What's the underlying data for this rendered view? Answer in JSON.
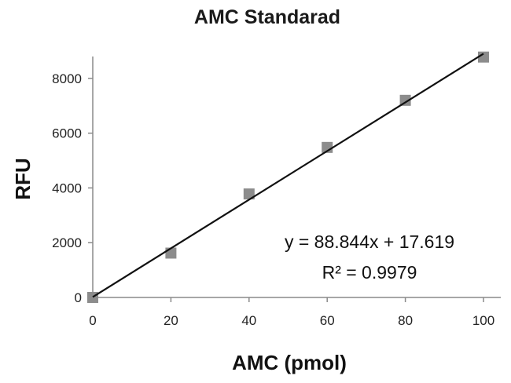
{
  "chart_data": {
    "type": "scatter",
    "title": "AMC Standarad",
    "xlabel": "AMC (pmol)",
    "ylabel": "RFU",
    "xlim": [
      0,
      100
    ],
    "ylim": [
      0,
      8800
    ],
    "x_ticks": [
      0,
      20,
      40,
      60,
      80,
      100
    ],
    "y_ticks": [
      0,
      2000,
      4000,
      6000,
      8000
    ],
    "grid": false,
    "legend": "none",
    "series": [
      {
        "x": [
          0,
          20,
          40,
          60,
          80,
          100
        ],
        "y": [
          0,
          1620,
          3780,
          5480,
          7200,
          8780
        ],
        "marker": "square",
        "color": "#8c8c8c"
      }
    ],
    "trendline": {
      "slope": 88.844,
      "intercept": 17.619,
      "color": "#111111"
    },
    "annotations": {
      "equation": "y = 88.844x + 17.619",
      "r_squared": "R² = 0.9979"
    }
  }
}
